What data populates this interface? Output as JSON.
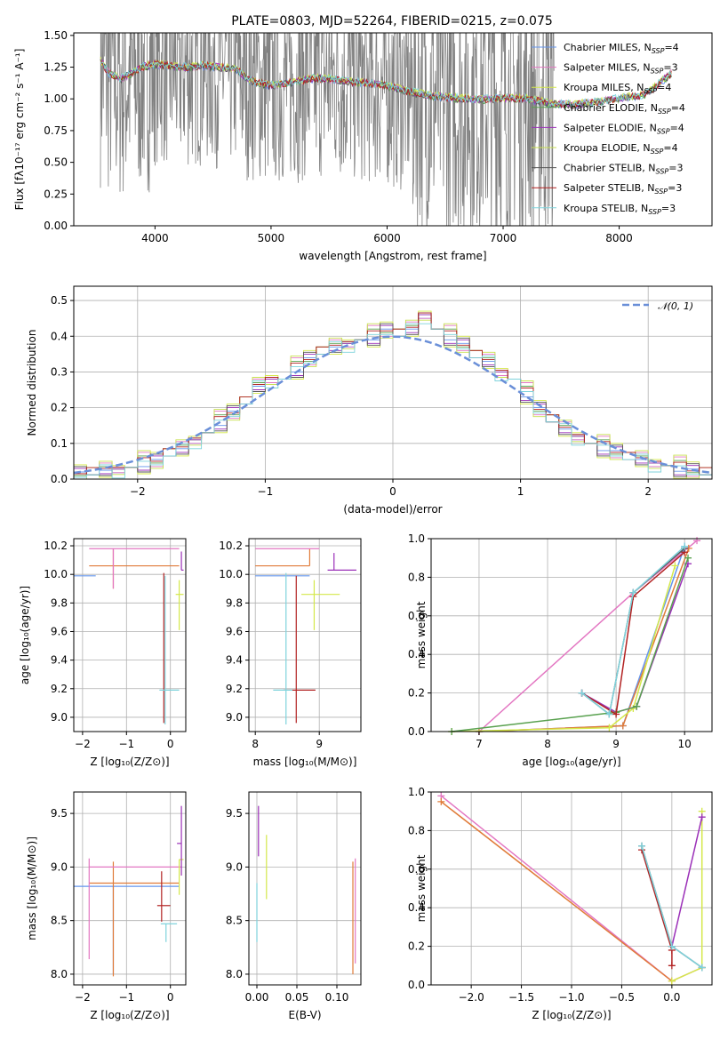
{
  "title": "PLATE=0803, MJD=52264, FIBERID=0215, z=0.075",
  "models": [
    {
      "name": "Chabrier MILES, N",
      "sub": "SSP",
      "eq": "=4",
      "color": "#6495ed"
    },
    {
      "name": "Salpeter MILES, N",
      "sub": "SSP",
      "eq": "=3",
      "color": "#e377c2"
    },
    {
      "name": "Kroupa MILES, N",
      "sub": "SSP",
      "eq": "=4",
      "color": "#d4e84a"
    },
    {
      "name": "Chabrier ELODIE, N",
      "sub": "SSP",
      "eq": "=4",
      "color": "#59a14f"
    },
    {
      "name": "Salpeter ELODIE, N",
      "sub": "SSP",
      "eq": "=4",
      "color": "#9b30b8"
    },
    {
      "name": "Kroupa ELODIE, N",
      "sub": "SSP",
      "eq": "=4",
      "color": "#c8e050"
    },
    {
      "name": "Chabrier STELIB, N",
      "sub": "SSP",
      "eq": "=3",
      "color": "#555555"
    },
    {
      "name": "Salpeter STELIB, N",
      "sub": "SSP",
      "eq": "=3",
      "color": "#b22222"
    },
    {
      "name": "Kroupa STELIB, N",
      "sub": "SSP",
      "eq": "=3",
      "color": "#7fd3dc"
    }
  ],
  "chart_data": [
    {
      "type": "line",
      "title": "PLATE=0803, MJD=52264, FIBERID=0215, z=0.075",
      "xlabel": "wavelength [Angstrom, rest frame]",
      "ylabel": "Flux [fλ10⁻¹⁷ erg cm⁻² s⁻¹ A⁻¹]",
      "xlim": [
        3300,
        8800
      ],
      "ylim": [
        0,
        1.52
      ],
      "xticks": [
        "4000",
        "5000",
        "6000",
        "7000",
        "8000"
      ],
      "yticks": [
        "0.00",
        "0.25",
        "0.50",
        "0.75",
        "1.00",
        "1.25",
        "1.50"
      ],
      "legend": "top-right",
      "data_span": [
        3530,
        7440
      ],
      "model_span": [
        3530,
        8450
      ],
      "model_x": [
        3530,
        3600,
        3700,
        3800,
        3900,
        4000,
        4100,
        4200,
        4300,
        4400,
        4500,
        4600,
        4700,
        4800,
        4900,
        5000,
        5200,
        5400,
        5600,
        5800,
        6000,
        6200,
        6400,
        6600,
        6800,
        7000,
        7200,
        7400,
        7600,
        7800,
        8000,
        8200,
        8300,
        8450
      ],
      "model_y": [
        1.3,
        1.2,
        1.15,
        1.2,
        1.25,
        1.27,
        1.26,
        1.25,
        1.24,
        1.26,
        1.25,
        1.24,
        1.23,
        1.15,
        1.12,
        1.1,
        1.13,
        1.16,
        1.14,
        1.12,
        1.1,
        1.05,
        1.02,
        1.0,
        0.99,
        1.0,
        1.0,
        0.96,
        0.95,
        0.97,
        1.0,
        1.02,
        1.08,
        1.2
      ]
    },
    {
      "type": "line",
      "xlabel": "(data-model)/error",
      "ylabel": "Normed distribution",
      "xlim": [
        -2.5,
        2.5
      ],
      "ylim": [
        0,
        0.54
      ],
      "xticks": [
        "−2",
        "−1",
        "0",
        "1",
        "2"
      ],
      "yticks": [
        "0.0",
        "0.1",
        "0.2",
        "0.3",
        "0.4",
        "0.5"
      ],
      "grid": true,
      "legend": "top-right",
      "reference_label": "𝒩(0, 1)",
      "bin_edges_from": -2.5,
      "bin_width": 0.1,
      "hist_base": [
        0.02,
        0.022,
        0.025,
        0.028,
        0.033,
        0.045,
        0.055,
        0.075,
        0.085,
        0.11,
        0.13,
        0.16,
        0.19,
        0.22,
        0.26,
        0.28,
        0.28,
        0.31,
        0.34,
        0.36,
        0.37,
        0.38,
        0.39,
        0.4,
        0.42,
        0.41,
        0.42,
        0.46,
        0.42,
        0.4,
        0.38,
        0.35,
        0.33,
        0.3,
        0.28,
        0.24,
        0.2,
        0.17,
        0.14,
        0.12,
        0.1,
        0.09,
        0.08,
        0.065,
        0.055,
        0.045,
        0.038,
        0.032,
        0.028,
        0.022
      ]
    },
    {
      "type": "scatter",
      "xlabel": "Z [log₁₀(Z/Z⊙)]",
      "ylabel": "age  [log₁₀(age/yr)]",
      "xlim": [
        -2.2,
        0.35
      ],
      "ylim": [
        8.9,
        10.25
      ],
      "xticks": [
        "−2",
        "−1",
        "0"
      ],
      "yticks": [
        "9.0",
        "9.2",
        "9.4",
        "9.6",
        "9.8",
        "10.0",
        "10.2"
      ],
      "grid": true,
      "errorbars": [
        {
          "x": -2.0,
          "xerr": [
            2.0,
            0.3
          ],
          "y": 9.99,
          "yerr": [
            0.0,
            0.0
          ],
          "color": "#6495ed"
        },
        {
          "x": -1.3,
          "xerr": [
            0.55,
            1.5
          ],
          "y": 10.06,
          "yerr": [
            0.16,
            0.12
          ],
          "color": "#e07b39"
        },
        {
          "x": -1.3,
          "xerr": [
            0.55,
            1.5
          ],
          "y": 10.18,
          "yerr": [
            0.28,
            0.0
          ],
          "color": "#e377c2"
        },
        {
          "x": -0.15,
          "xerr": [
            0.0,
            0.0
          ],
          "y": 9.19,
          "yerr": [
            0.23,
            0.82
          ],
          "color": "#b22222"
        },
        {
          "x": -0.1,
          "xerr": [
            0.15,
            0.3
          ],
          "y": 9.19,
          "yerr": [
            0.0,
            0.0
          ],
          "color": "#7fd3dc"
        },
        {
          "x": -0.12,
          "xerr": [
            0.0,
            0.0
          ],
          "y": 9.19,
          "yerr": [
            0.24,
            0.8
          ],
          "color": "#7fd3dc"
        },
        {
          "x": 0.2,
          "xerr": [
            0.08,
            0.1
          ],
          "y": 9.86,
          "yerr": [
            0.25,
            0.1
          ],
          "color": "#d4e84a"
        },
        {
          "x": 0.25,
          "xerr": [
            0.0,
            0.05
          ],
          "y": 10.03,
          "yerr": [
            0.0,
            0.13
          ],
          "color": "#9b30b8"
        }
      ]
    },
    {
      "type": "scatter",
      "xlabel": "mass [log₁₀(M/M⊙)]",
      "xlim": [
        7.9,
        9.65
      ],
      "ylim": [
        8.9,
        10.25
      ],
      "xticks": [
        "8",
        "9"
      ],
      "yticks": [
        "9.0",
        "9.2",
        "9.4",
        "9.6",
        "9.8",
        "10.0",
        "10.2"
      ],
      "grid": true,
      "errorbars": [
        {
          "x": 8.85,
          "xerr": [
            0.85,
            0.0
          ],
          "y": 9.99,
          "yerr": [
            0.0,
            0.0
          ],
          "color": "#6495ed"
        },
        {
          "x": 8.85,
          "xerr": [
            0.85,
            0.0
          ],
          "y": 10.06,
          "yerr": [
            0.0,
            0.12
          ],
          "color": "#e07b39"
        },
        {
          "x": 9.0,
          "xerr": [
            1.0,
            0.0
          ],
          "y": 10.18,
          "yerr": [
            0.0,
            0.0
          ],
          "color": "#e377c2"
        },
        {
          "x": 8.64,
          "xerr": [
            0.2,
            0.3
          ],
          "y": 9.19,
          "yerr": [
            0.23,
            0.8
          ],
          "color": "#b22222"
        },
        {
          "x": 8.48,
          "xerr": [
            0.2,
            0.1
          ],
          "y": 9.19,
          "yerr": [
            0.24,
            0.82
          ],
          "color": "#7fd3dc"
        },
        {
          "x": 8.92,
          "xerr": [
            0.2,
            0.4
          ],
          "y": 9.86,
          "yerr": [
            0.25,
            0.1
          ],
          "color": "#d4e84a"
        },
        {
          "x": 9.23,
          "xerr": [
            0.1,
            0.35
          ],
          "y": 10.03,
          "yerr": [
            0.0,
            0.12
          ],
          "color": "#9b30b8"
        }
      ]
    },
    {
      "type": "line",
      "xlabel": "age  [log₁₀(age/yr)]",
      "ylabel": "mass weight",
      "xlim": [
        6.3,
        10.4
      ],
      "ylim": [
        0,
        1.0
      ],
      "xticks": [
        "7",
        "8",
        "9",
        "10"
      ],
      "yticks": [
        "0.0",
        "0.2",
        "0.4",
        "0.6",
        "0.8",
        "1.0"
      ],
      "grid": true,
      "series": [
        {
          "color": "#e377c2",
          "x": [
            7.0,
            9.25,
            10.18
          ],
          "y": [
            0.0,
            0.72,
            0.99
          ]
        },
        {
          "color": "#6495ed",
          "x": [
            7.0,
            9.1,
            10.0
          ],
          "y": [
            0.0,
            0.03,
            0.96
          ]
        },
        {
          "color": "#e07b39",
          "x": [
            7.0,
            9.1,
            10.06
          ],
          "y": [
            0.0,
            0.03,
            0.95
          ]
        },
        {
          "color": "#d4e84a",
          "x": [
            6.6,
            8.9,
            9.25,
            9.86
          ],
          "y": [
            0.0,
            0.02,
            0.12,
            0.86
          ]
        },
        {
          "color": "#9b30b8",
          "x": [
            8.5,
            9.0,
            9.3,
            10.05
          ],
          "y": [
            0.2,
            0.1,
            0.13,
            0.87
          ]
        },
        {
          "color": "#59a14f",
          "x": [
            6.6,
            9.0,
            9.3,
            10.05
          ],
          "y": [
            0.0,
            0.1,
            0.13,
            0.9
          ]
        },
        {
          "color": "#b22222",
          "x": [
            8.5,
            9.0,
            9.25,
            10.0
          ],
          "y": [
            0.2,
            0.09,
            0.7,
            0.93
          ]
        },
        {
          "color": "#555555",
          "x": [
            8.5,
            8.9,
            9.25,
            10.0
          ],
          "y": [
            0.2,
            0.09,
            0.72,
            0.95
          ]
        },
        {
          "color": "#7fd3dc",
          "x": [
            8.5,
            8.9,
            9.25,
            10.0
          ],
          "y": [
            0.2,
            0.09,
            0.72,
            0.96
          ]
        }
      ]
    },
    {
      "type": "scatter",
      "xlabel": "Z [log₁₀(Z/Z⊙)]",
      "ylabel": "mass [log₁₀(M/M⊙)]",
      "xlim": [
        -2.2,
        0.35
      ],
      "ylim": [
        7.9,
        9.7
      ],
      "xticks": [
        "−2",
        "−1",
        "0"
      ],
      "yticks": [
        "8.0",
        "8.5",
        "9.0",
        "9.5"
      ],
      "grid": true,
      "errorbars": [
        {
          "x": -1.3,
          "xerr": [
            0.9,
            1.5
          ],
          "y": 8.82,
          "yerr": [
            0.82,
            0.0
          ],
          "color": "#6495ed"
        },
        {
          "x": -1.3,
          "xerr": [
            0.55,
            1.5
          ],
          "y": 8.85,
          "yerr": [
            0.87,
            0.2
          ],
          "color": "#e07b39"
        },
        {
          "x": -1.85,
          "xerr": [
            0.0,
            2.1
          ],
          "y": 9.0,
          "yerr": [
            0.86,
            0.08
          ],
          "color": "#e377c2"
        },
        {
          "x": -0.2,
          "xerr": [
            0.1,
            0.2
          ],
          "y": 8.64,
          "yerr": [
            0.15,
            0.32
          ],
          "color": "#b22222"
        },
        {
          "x": -0.1,
          "xerr": [
            0.12,
            0.25
          ],
          "y": 8.47,
          "yerr": [
            0.17,
            0.0
          ],
          "color": "#7fd3dc"
        },
        {
          "x": 0.2,
          "xerr": [
            0.0,
            0.1
          ],
          "y": 9.07,
          "yerr": [
            0.33,
            0.0
          ],
          "color": "#d4e84a"
        },
        {
          "x": 0.25,
          "xerr": [
            0.1,
            0.0
          ],
          "y": 9.22,
          "yerr": [
            0.3,
            0.35
          ],
          "color": "#9b30b8"
        }
      ]
    },
    {
      "type": "scatter",
      "xlabel": "E(B-V)",
      "xlim": [
        -0.01,
        0.13
      ],
      "ylim": [
        7.9,
        9.7
      ],
      "xticks": [
        "0.00",
        "0.05",
        "0.10"
      ],
      "yticks": [
        "8.0",
        "8.5",
        "9.0",
        "9.5"
      ],
      "grid": true,
      "errorbars": [
        {
          "x": 0.0,
          "y": 8.65,
          "yerr": [
            0.35,
            0.2
          ],
          "color": "#7fd3dc"
        },
        {
          "x": 0.002,
          "y": 9.3,
          "yerr": [
            0.2,
            0.27
          ],
          "color": "#9b30b8"
        },
        {
          "x": 0.012,
          "y": 8.9,
          "yerr": [
            0.2,
            0.4
          ],
          "color": "#d4e84a"
        },
        {
          "x": 0.12,
          "y": 8.5,
          "yerr": [
            0.5,
            0.55
          ],
          "color": "#e07b39"
        },
        {
          "x": 0.123,
          "y": 8.6,
          "yerr": [
            0.5,
            0.48
          ],
          "color": "#e377c2"
        }
      ]
    },
    {
      "type": "line",
      "xlabel": "Z [log₁₀(Z/Z⊙)]",
      "ylabel": "mass weight",
      "xlim": [
        -2.4,
        0.4
      ],
      "ylim": [
        0,
        1.0
      ],
      "xticks": [
        "−2.0",
        "−1.5",
        "−1.0",
        "−0.5",
        "0.0"
      ],
      "yticks": [
        "0.0",
        "0.2",
        "0.4",
        "0.6",
        "0.8",
        "1.0"
      ],
      "grid": true,
      "series": [
        {
          "color": "#e377c2",
          "x": [
            -2.3,
            0.0,
            0.3
          ],
          "y": [
            0.98,
            0.02,
            0.09
          ]
        },
        {
          "color": "#e07b39",
          "x": [
            -2.3,
            0.0
          ],
          "y": [
            0.95,
            0.02
          ]
        },
        {
          "color": "#d4e84a",
          "x": [
            0.0,
            0.3,
            0.3
          ],
          "y": [
            0.02,
            0.09,
            0.9
          ]
        },
        {
          "color": "#9b30b8",
          "x": [
            0.0,
            0.3
          ],
          "y": [
            0.2,
            0.87
          ]
        },
        {
          "color": "#b22222",
          "x": [
            -0.3,
            0.0,
            0.0
          ],
          "y": [
            0.7,
            0.18,
            0.1
          ]
        },
        {
          "color": "#555555",
          "x": [
            -0.3,
            0.0,
            0.3
          ],
          "y": [
            0.72,
            0.2,
            0.09
          ]
        },
        {
          "color": "#7fd3dc",
          "x": [
            -0.3,
            0.0,
            0.3
          ],
          "y": [
            0.72,
            0.2,
            0.09
          ]
        }
      ]
    }
  ]
}
